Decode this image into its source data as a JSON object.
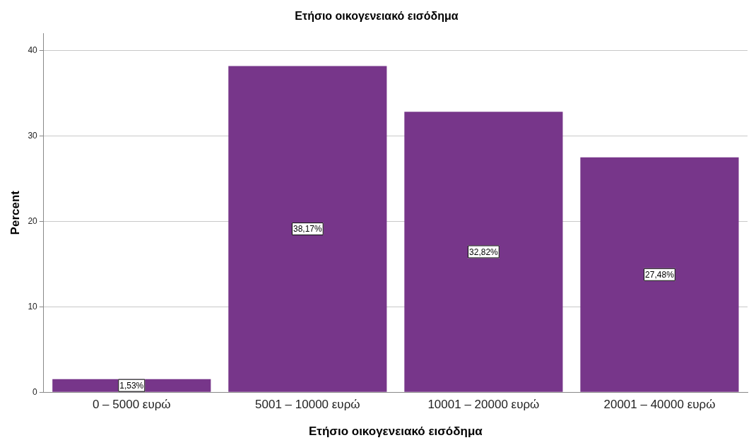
{
  "chart_data": {
    "type": "bar",
    "title": "Ετήσιο οικογενειακό εισόδημα",
    "xlabel": "Ετήσιο οικογενειακό εισόδημα",
    "ylabel": "Percent",
    "categories": [
      "0 – 5000 ευρώ",
      "5001 – 10000 ευρώ",
      "10001 – 20000 ευρώ",
      "20001 – 40000 ευρώ"
    ],
    "values": [
      1.53,
      38.17,
      32.82,
      27.48
    ],
    "value_labels": [
      "1,53%",
      "38,17%",
      "32,82%",
      "27,48%"
    ],
    "color": "#77368a",
    "ylim": [
      0,
      42
    ],
    "yticks": [
      0,
      10,
      20,
      30,
      40
    ],
    "grid": "y",
    "legend": false
  }
}
